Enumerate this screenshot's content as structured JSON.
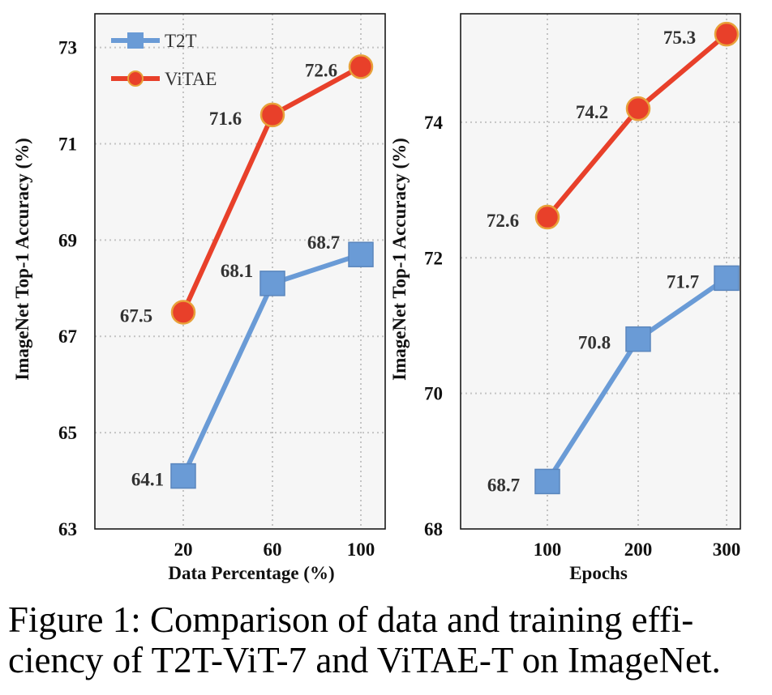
{
  "chart_data": [
    {
      "type": "line",
      "title": "",
      "xlabel": "Data Percentage (%)",
      "ylabel": "ImageNet Top-1 Accuracy (%)",
      "categories": [
        "20",
        "60",
        "100"
      ],
      "y_ticks": [
        "63",
        "65",
        "67",
        "69",
        "71",
        "73"
      ],
      "ylim": [
        63,
        73.7
      ],
      "grid": true,
      "legend": "top-left",
      "series": [
        {
          "name": "T2T",
          "marker": "square",
          "color": "#6a9bd6",
          "values": [
            64.1,
            68.1,
            68.7
          ],
          "labels": [
            "64.1",
            "68.1",
            "68.7"
          ]
        },
        {
          "name": "ViTAE",
          "marker": "circle",
          "color": "#e8402a",
          "values": [
            67.5,
            71.6,
            72.6
          ],
          "labels": [
            "67.5",
            "71.6",
            "72.6"
          ]
        }
      ]
    },
    {
      "type": "line",
      "title": "",
      "xlabel": "Epochs",
      "ylabel": "ImageNet Top-1 Accuracy (%)",
      "categories": [
        "100",
        "200",
        "300"
      ],
      "y_ticks": [
        "68",
        "70",
        "72",
        "74"
      ],
      "ylim": [
        68,
        75.6
      ],
      "grid": true,
      "series": [
        {
          "name": "T2T",
          "marker": "square",
          "color": "#6a9bd6",
          "values": [
            68.7,
            70.8,
            71.7
          ],
          "labels": [
            "68.7",
            "70.8",
            "71.7"
          ]
        },
        {
          "name": "ViTAE",
          "marker": "circle",
          "color": "#e8402a",
          "values": [
            72.6,
            74.2,
            75.3
          ],
          "labels": [
            "72.6",
            "74.2",
            "75.3"
          ]
        }
      ]
    }
  ],
  "caption": {
    "line1": "Figure 1: Comparison of data and training effi-",
    "line2": "ciency of T2T-ViT-7 and ViTAE-T on ImageNet."
  }
}
